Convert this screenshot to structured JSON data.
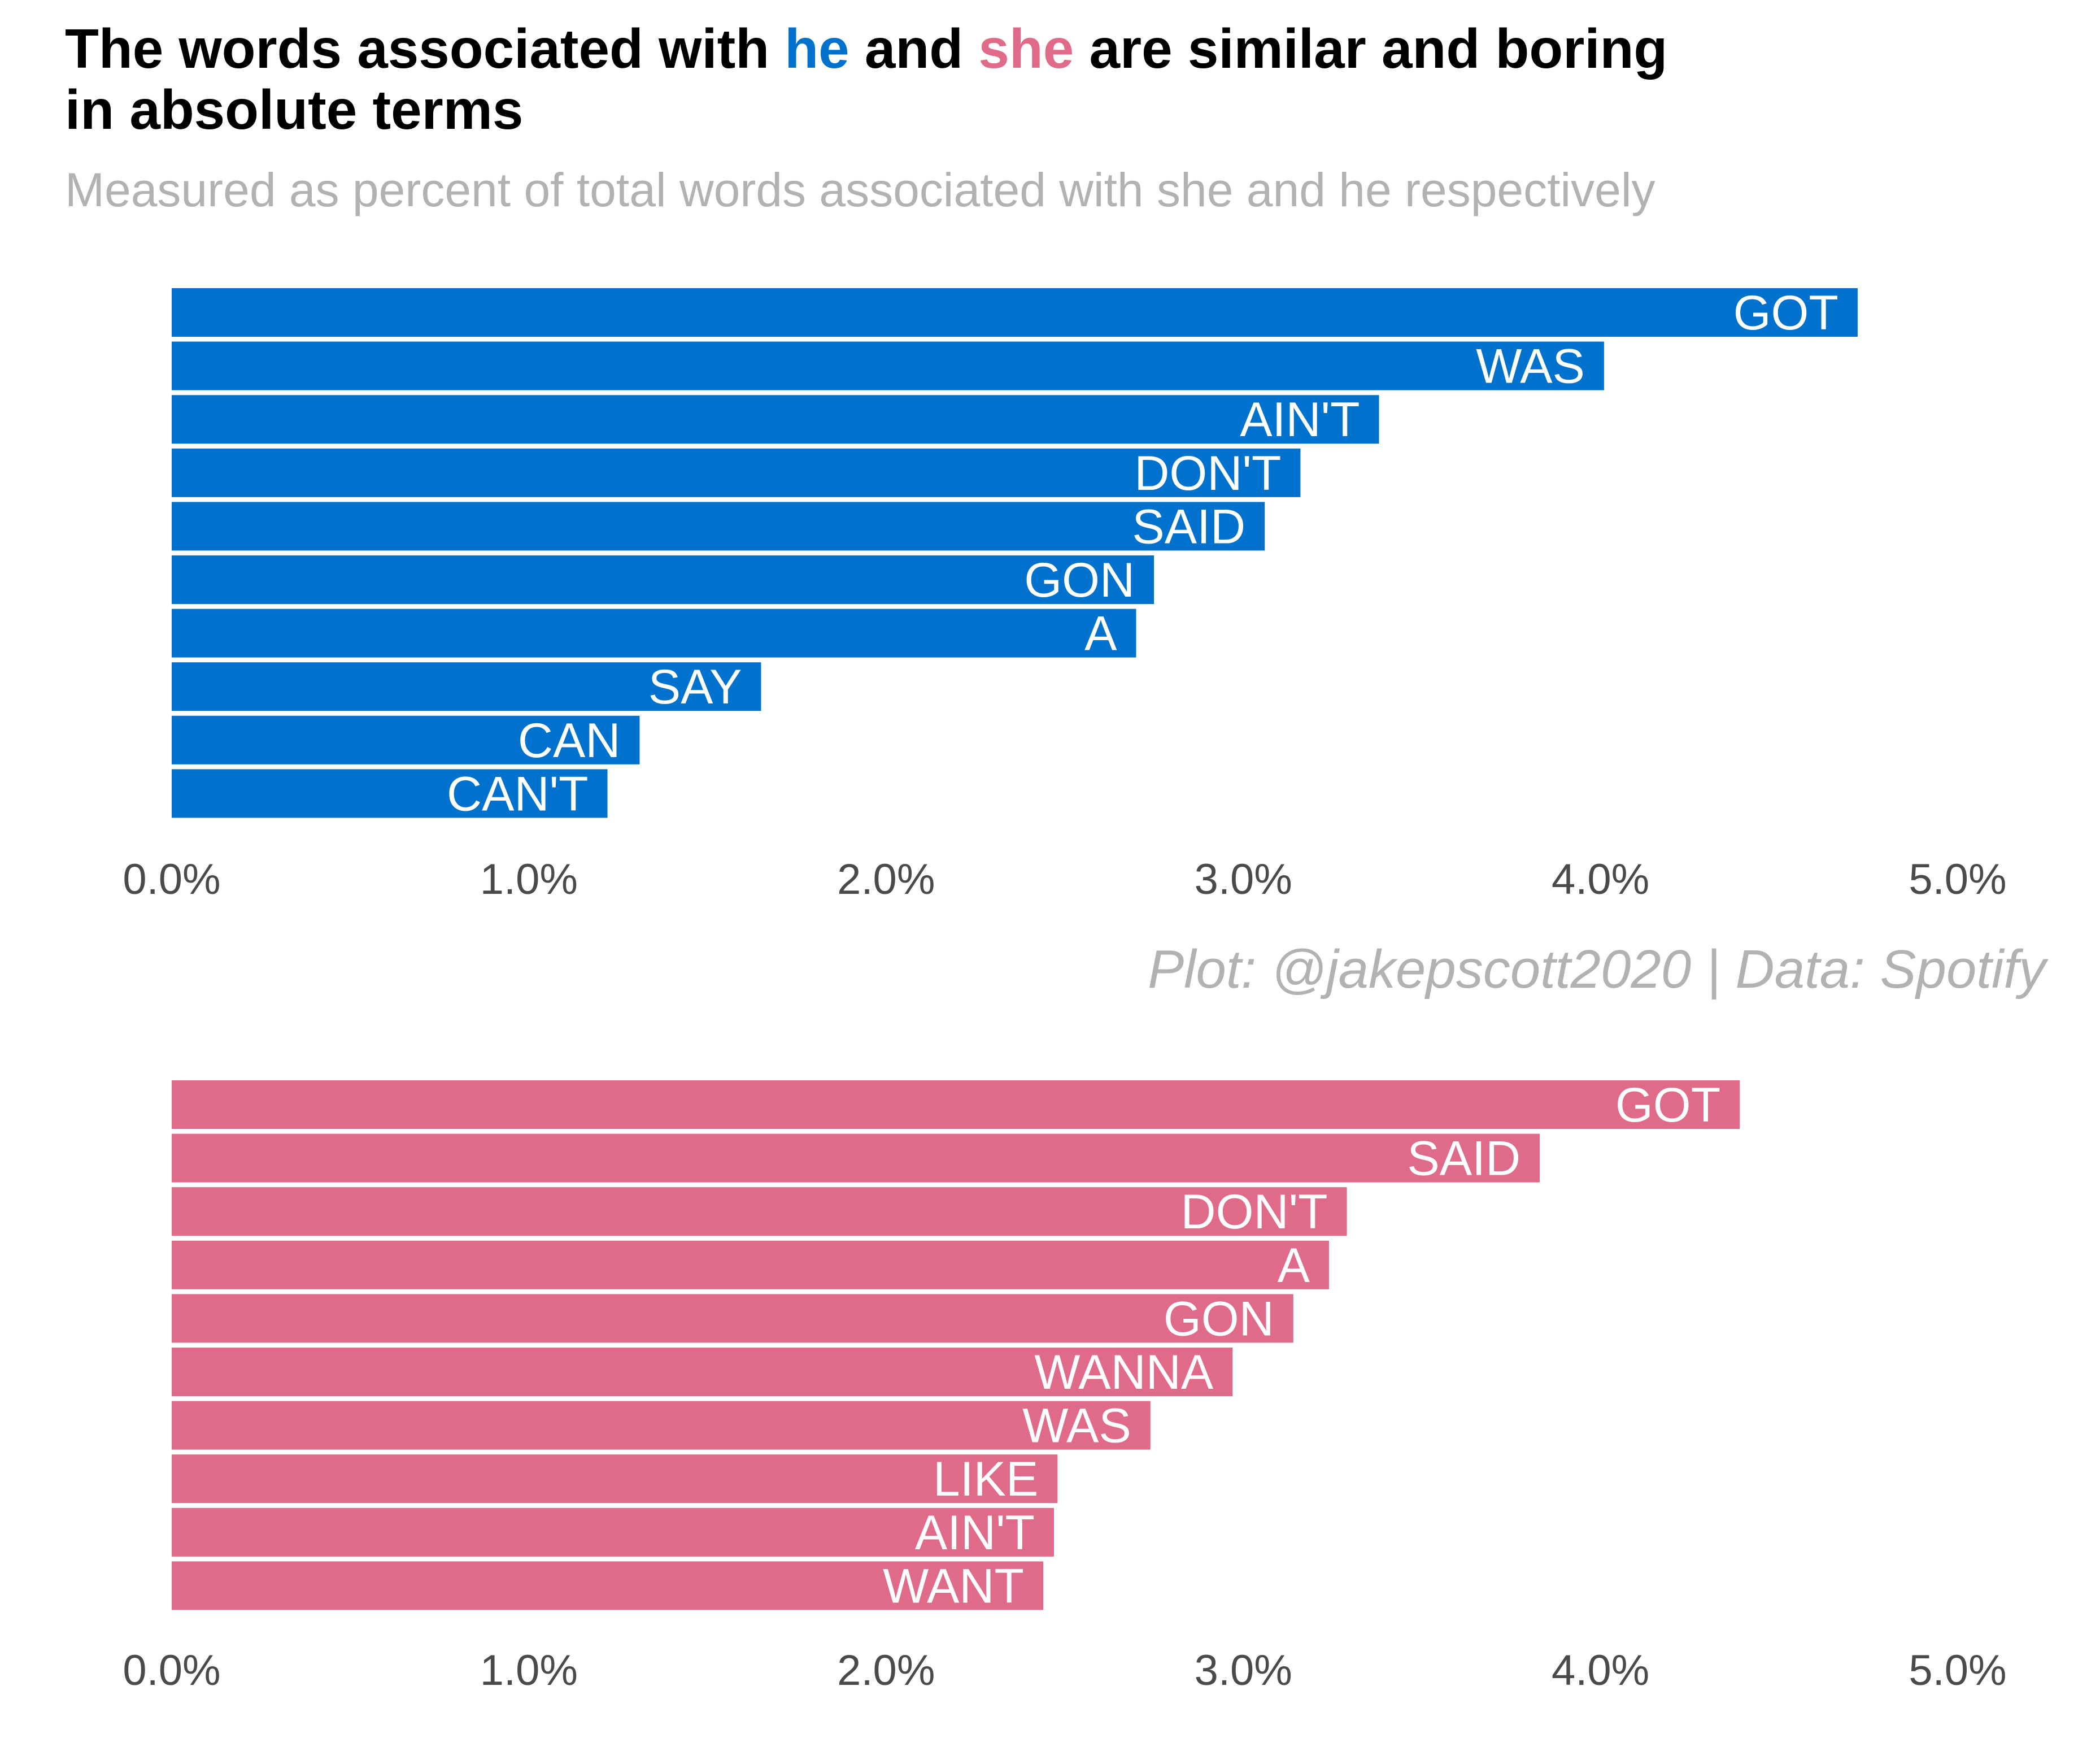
{
  "title": {
    "prefix": "The words associated with ",
    "he": "he",
    "middle": " and ",
    "she": "she",
    "suffix": " are similar and boring",
    "line2": "in absolute terms"
  },
  "subtitle": "Measured as percent of total words associated with she and he respectively",
  "caption": "Plot: @jakepscott2020 | Data: Spotify",
  "colors": {
    "he": "#0072ce",
    "she": "#e06b89"
  },
  "chart_data": [
    {
      "type": "bar",
      "orientation": "horizontal",
      "series_key": "he",
      "color": "#0072ce",
      "xlim": [
        0,
        5
      ],
      "x_ticks": [
        "0.0%",
        "1.0%",
        "2.0%",
        "3.0%",
        "4.0%",
        "5.0%"
      ],
      "categories": [
        "GOT",
        "WAS",
        "AIN'T",
        "DON'T",
        "SAID",
        "GON",
        "A",
        "SAY",
        "CAN",
        "CAN'T"
      ],
      "values": [
        4.72,
        4.01,
        3.38,
        3.16,
        3.06,
        2.75,
        2.7,
        1.65,
        1.31,
        1.22
      ]
    },
    {
      "type": "bar",
      "orientation": "horizontal",
      "series_key": "she",
      "color": "#e06b89",
      "xlim": [
        0,
        5
      ],
      "x_ticks": [
        "0.0%",
        "1.0%",
        "2.0%",
        "3.0%",
        "4.0%",
        "5.0%"
      ],
      "categories": [
        "GOT",
        "SAID",
        "DON'T",
        "A",
        "GON",
        "WANNA",
        "WAS",
        "LIKE",
        "AIN'T",
        "WANT"
      ],
      "values": [
        4.39,
        3.83,
        3.29,
        3.24,
        3.14,
        2.97,
        2.74,
        2.48,
        2.47,
        2.44
      ]
    }
  ]
}
